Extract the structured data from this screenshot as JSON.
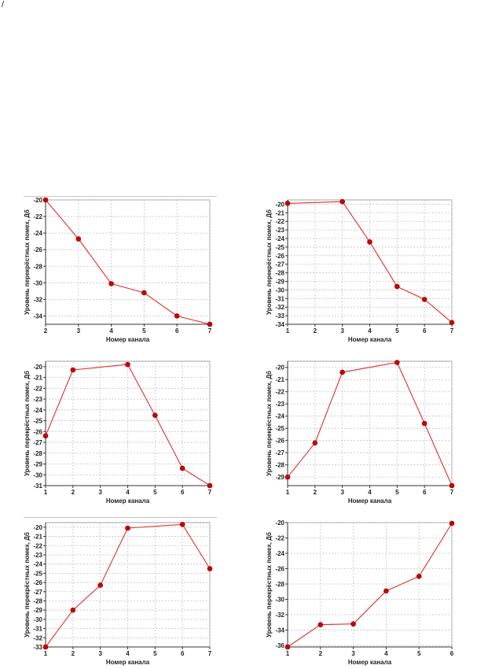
{
  "page": {
    "corner_mark": "/"
  },
  "chart_data": [
    {
      "type": "line",
      "x": [
        2,
        3,
        4,
        5,
        6,
        7
      ],
      "y": [
        -20,
        -24.7,
        -30.1,
        -31.2,
        -34,
        -35
      ],
      "xlabel": "Номер канала",
      "ylabel": "Уровень перекрёстных помех, Дб",
      "xlim": [
        2,
        7
      ],
      "ylim": [
        -35,
        -20
      ],
      "xticks": [
        2,
        3,
        4,
        5,
        6,
        7
      ],
      "yticks": [
        -20,
        -22,
        -24,
        -26,
        -28,
        -30,
        -32,
        -34
      ],
      "grid": true,
      "line_color": "#e0302a",
      "marker_color": "#cc0000"
    },
    {
      "type": "line",
      "x": [
        1,
        3,
        4,
        5,
        6,
        7
      ],
      "y": [
        -19.9,
        -19.7,
        -24.4,
        -29.6,
        -31.1,
        -33.8
      ],
      "xlabel": "Номер канала",
      "ylabel": "Уровень перекрёстных помех, Дб",
      "xlim": [
        1,
        7
      ],
      "ylim": [
        -34,
        -19.5
      ],
      "xticks": [
        1,
        2,
        3,
        4,
        5,
        6,
        7
      ],
      "yticks": [
        -20,
        -21,
        -22,
        -23,
        -24,
        -25,
        -26,
        -27,
        -28,
        -29,
        -30,
        -31,
        -32,
        -33,
        -34
      ],
      "grid": true,
      "line_color": "#e0302a",
      "marker_color": "#cc0000"
    },
    {
      "type": "line",
      "x": [
        1,
        2,
        4,
        5,
        6,
        7
      ],
      "y": [
        -26.4,
        -20.3,
        -19.8,
        -24.5,
        -29.4,
        -31
      ],
      "xlabel": "Номер канала",
      "ylabel": "Уровень перекрёстных помех, Дб",
      "xlim": [
        1,
        7
      ],
      "ylim": [
        -31,
        -19.5
      ],
      "xticks": [
        1,
        2,
        3,
        4,
        5,
        6,
        7
      ],
      "yticks": [
        -20,
        -21,
        -22,
        -23,
        -24,
        -25,
        -26,
        -27,
        -28,
        -29,
        -30,
        -31
      ],
      "grid": true,
      "line_color": "#e0302a",
      "marker_color": "#cc0000"
    },
    {
      "type": "line",
      "x": [
        1,
        2,
        3,
        5,
        6,
        7
      ],
      "y": [
        -29,
        -26.2,
        -20.4,
        -19.6,
        -24.6,
        -29.7
      ],
      "xlabel": "Номер канала",
      "ylabel": "Уровень перекрёстных помех, Дб",
      "xlim": [
        1,
        7
      ],
      "ylim": [
        -29.7,
        -19.5
      ],
      "xticks": [
        1,
        2,
        3,
        4,
        5,
        6,
        7
      ],
      "yticks": [
        -20,
        -21,
        -22,
        -23,
        -24,
        -25,
        -26,
        -27,
        -28,
        -29
      ],
      "grid": true,
      "line_color": "#e0302a",
      "marker_color": "#cc0000"
    },
    {
      "type": "line",
      "x": [
        1,
        2,
        3,
        4,
        6,
        7
      ],
      "y": [
        -33,
        -29,
        -26.3,
        -20.1,
        -19.7,
        -24.5
      ],
      "xlabel": "Номер канала",
      "ylabel": "Уровень перекрёстных помех, Дб",
      "xlim": [
        1,
        7
      ],
      "ylim": [
        -33,
        -19.5
      ],
      "xticks": [
        1,
        2,
        3,
        4,
        5,
        6,
        7
      ],
      "yticks": [
        -20,
        -21,
        -22,
        -23,
        -24,
        -25,
        -26,
        -27,
        -28,
        -29,
        -30,
        -31,
        -32,
        -33
      ],
      "grid": true,
      "line_color": "#e0302a",
      "marker_color": "#cc0000"
    },
    {
      "type": "line",
      "x": [
        1,
        2,
        3,
        4,
        5,
        6
      ],
      "y": [
        -36.2,
        -33.3,
        -33.2,
        -28.9,
        -27,
        -20.1
      ],
      "xlabel": "Номер канала",
      "ylabel": "Уровень перекрёстных помех, Дб",
      "xlim": [
        1,
        6
      ],
      "ylim": [
        -36.2,
        -20
      ],
      "xticks": [
        1,
        2,
        3,
        4,
        5,
        6
      ],
      "yticks": [
        -20,
        -22,
        -24,
        -26,
        -28,
        -30,
        -32,
        -34,
        -36
      ],
      "grid": true,
      "line_color": "#e0302a",
      "marker_color": "#cc0000"
    }
  ]
}
